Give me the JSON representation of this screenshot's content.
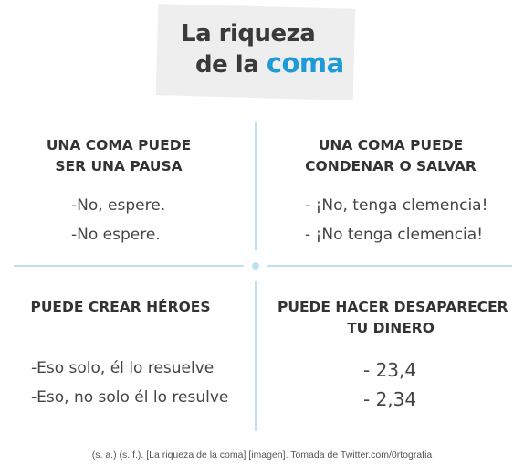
{
  "title": {
    "line1": "La riqueza",
    "line2_prefix": "de la ",
    "line2_highlight": "coma"
  },
  "quadrants": [
    {
      "heading_line1": "UNA COMA PUEDE",
      "heading_line2": "SER UNA PAUSA",
      "examples": [
        "-No, espere.",
        "-No espere."
      ]
    },
    {
      "heading_line1": "UNA COMA PUEDE",
      "heading_line2": "CONDENAR O SALVAR",
      "examples": [
        "- ¡No, tenga clemencia!",
        "- ¡No tenga clemencia!"
      ]
    },
    {
      "heading_line1": "PUEDE CREAR HÉROES",
      "examples": [
        "-Eso solo, él lo resuelve",
        "-Eso, no solo él lo resulve"
      ]
    },
    {
      "heading_line1": "PUEDE HACER DESAPARECER",
      "heading_line2": "TU DINERO",
      "examples": [
        "- 23,4",
        "- 2,34"
      ]
    }
  ],
  "caption": "(s. a.) (s. f.). [La riqueza de la coma] [imagen]. Tomada de Twitter.com/0rtografia",
  "colors": {
    "accent": "#1e9ad6",
    "divider": "#bfe0f2",
    "title_bg": "#eeeeee"
  }
}
